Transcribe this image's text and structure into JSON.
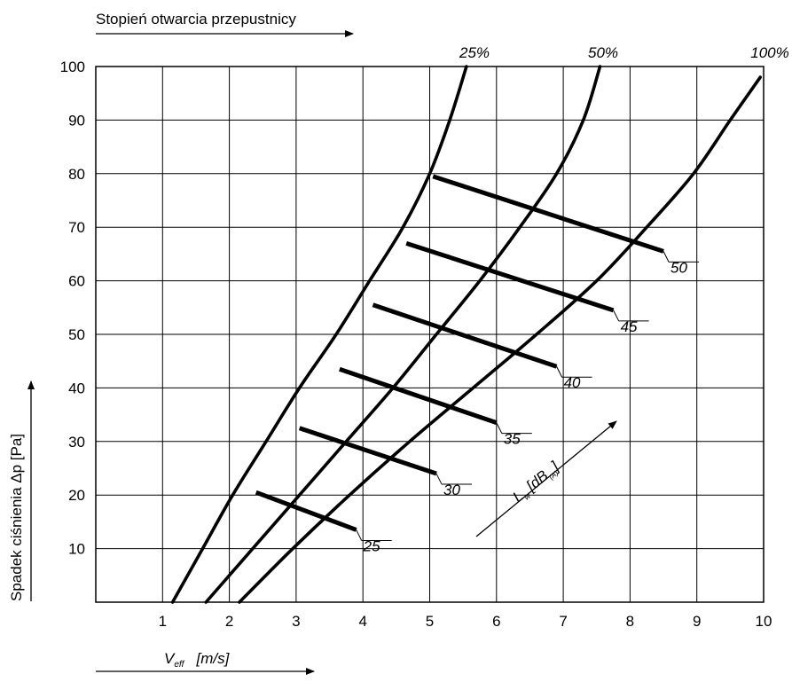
{
  "chart_data": {
    "type": "line",
    "title": "Stopień otwarcia przepustnicy",
    "xlabel": "V",
    "xlabel_sub": "eff",
    "xlabel_unit": "[m/s]",
    "ylabel": "Spadek ciśnienia Δp [Pa]",
    "xlim": [
      0,
      10
    ],
    "ylim": [
      0,
      100
    ],
    "xticks": [
      "1",
      "2",
      "3",
      "4",
      "5",
      "6",
      "7",
      "8",
      "9",
      "10"
    ],
    "yticks": [
      "10",
      "20",
      "30",
      "40",
      "50",
      "60",
      "70",
      "80",
      "90",
      "100"
    ],
    "grid": true,
    "series": [
      {
        "name": "25%",
        "points": [
          [
            1.15,
            0
          ],
          [
            1.6,
            10
          ],
          [
            2.05,
            20
          ],
          [
            2.55,
            30
          ],
          [
            3.05,
            40
          ],
          [
            3.6,
            50
          ],
          [
            4.1,
            60
          ],
          [
            4.6,
            70
          ],
          [
            5.0,
            80
          ],
          [
            5.3,
            90
          ],
          [
            5.55,
            100
          ]
        ]
      },
      {
        "name": "50%",
        "points": [
          [
            1.65,
            0
          ],
          [
            2.35,
            10
          ],
          [
            3.05,
            20
          ],
          [
            3.75,
            30
          ],
          [
            4.45,
            40
          ],
          [
            5.1,
            50
          ],
          [
            5.75,
            60
          ],
          [
            6.35,
            70
          ],
          [
            6.9,
            80
          ],
          [
            7.3,
            90
          ],
          [
            7.55,
            100
          ]
        ]
      },
      {
        "name": "100%",
        "points": [
          [
            2.15,
            0
          ],
          [
            2.95,
            10
          ],
          [
            3.8,
            20
          ],
          [
            4.7,
            30
          ],
          [
            5.65,
            40
          ],
          [
            6.6,
            50
          ],
          [
            7.5,
            60
          ],
          [
            8.25,
            70
          ],
          [
            8.95,
            80
          ],
          [
            9.5,
            90
          ],
          [
            9.95,
            98
          ]
        ]
      }
    ],
    "noise_label": "L",
    "noise_label_sub": "w",
    "noise_label_unit": "[dB",
    "noise_label_unit_sub": "(A)",
    "noise_label_unit_end": "]",
    "noise_lines": [
      {
        "label": "25",
        "from": [
          2.4,
          20.5
        ],
        "to": [
          3.9,
          13.5
        ]
      },
      {
        "label": "30",
        "from": [
          3.05,
          32.5
        ],
        "to": [
          5.1,
          24
        ]
      },
      {
        "label": "35",
        "from": [
          3.65,
          43.5
        ],
        "to": [
          6.0,
          33.5
        ]
      },
      {
        "label": "40",
        "from": [
          4.15,
          55.5
        ],
        "to": [
          6.9,
          44
        ]
      },
      {
        "label": "45",
        "from": [
          4.65,
          67
        ],
        "to": [
          7.75,
          54.5
        ]
      },
      {
        "label": "50",
        "from": [
          5.05,
          79.5
        ],
        "to": [
          8.5,
          65.5
        ]
      }
    ]
  }
}
